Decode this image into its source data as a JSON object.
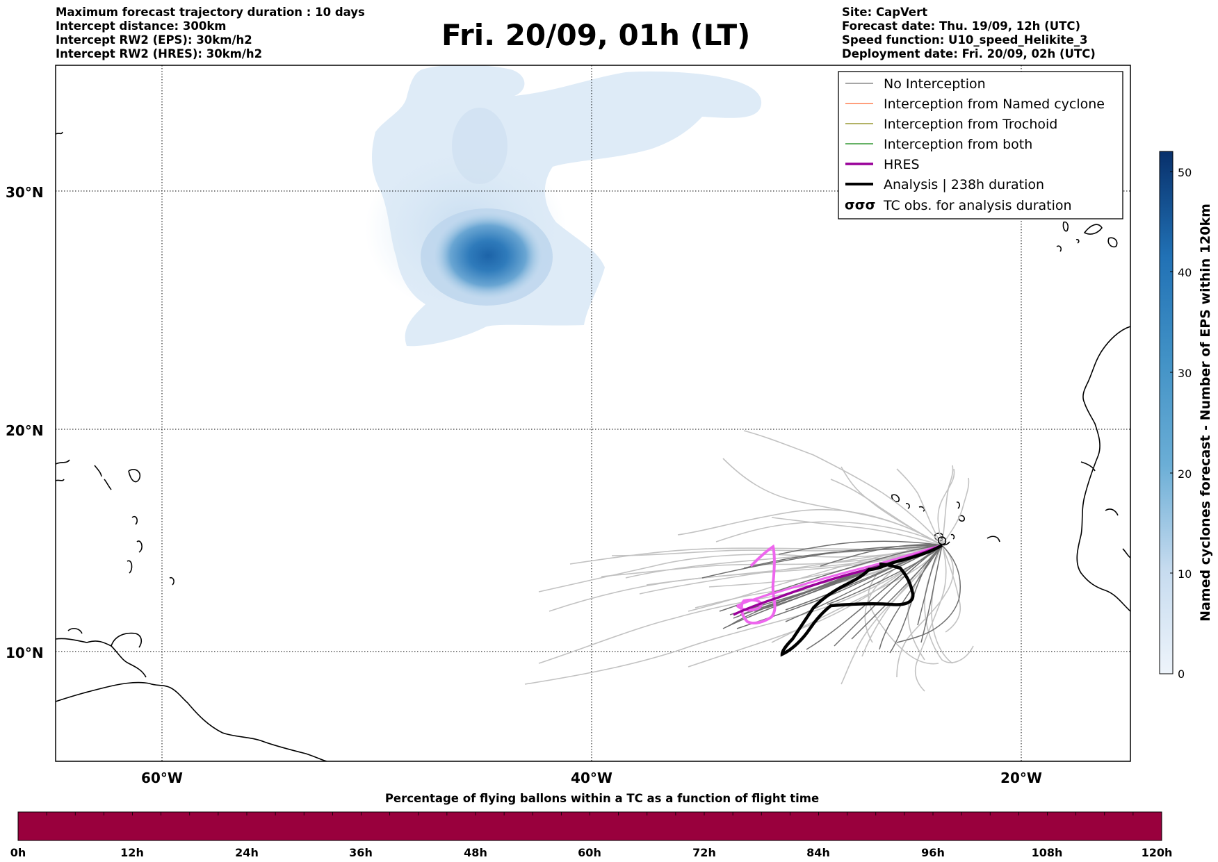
{
  "header": {
    "left_lines": [
      "Maximum forecast trajectory duration : 10 days",
      "Intercept distance: 300km",
      "Intercept RW2 (EPS):  30km/h2",
      "Intercept RW2 (HRES): 30km/h2"
    ],
    "right_lines": [
      "Site: CapVert",
      "Forecast date: Thu. 19/09, 12h (UTC)",
      "Speed function: U10_speed_Helikite_3",
      "Deployment date: Fri. 20/09, 02h (UTC)"
    ],
    "title": "Fri. 20/09, 01h (LT)"
  },
  "map": {
    "lat_labels": [
      "30°N",
      "20°N",
      "10°N"
    ],
    "lon_labels": [
      "60°W",
      "40°W",
      "20°W"
    ],
    "gridlines": true,
    "extent": {
      "lon": [
        -65,
        -15
      ],
      "lat": [
        5,
        35
      ]
    },
    "hres_color": "#990099",
    "analysis_color": "#000000",
    "hres_alt_color": "#ee66ee",
    "trajectory_color": "#bbbbbb"
  },
  "legend": {
    "placement": "top-right",
    "entries": [
      {
        "label": "No Interception",
        "color": "#888888",
        "style": "line-thin"
      },
      {
        "label": "Interception from Named cyclone",
        "color": "#ff7f50",
        "style": "line-thin"
      },
      {
        "label": "Interception from Trochoid",
        "color": "#999933",
        "style": "line-thin"
      },
      {
        "label": "Interception from both",
        "color": "#339933",
        "style": "line-thin"
      },
      {
        "label": "HRES",
        "color": "#990099",
        "style": "line-thick"
      },
      {
        "label": "Analysis | 238h duration",
        "color": "#000000",
        "style": "line-thick"
      },
      {
        "label": "TC obs. for analysis duration",
        "color": "#000000",
        "style": "markers",
        "marker_text": "σσσ"
      }
    ]
  },
  "colorbar_vertical": {
    "label": "Named cyclones forecast - Number of EPS within 120km",
    "ticks": [
      "50",
      "40",
      "30",
      "20",
      "10",
      "0"
    ],
    "range": [
      0,
      52
    ],
    "color_low": "#eef4fb",
    "color_high": "#08306b"
  },
  "colorbar_horizontal": {
    "title": "Percentage of flying ballons within a TC as a function of flight time",
    "ticks": [
      "0h",
      "12h",
      "24h",
      "36h",
      "48h",
      "60h",
      "72h",
      "84h",
      "96h",
      "108h",
      "120h"
    ],
    "fill_color": "#99003d"
  }
}
